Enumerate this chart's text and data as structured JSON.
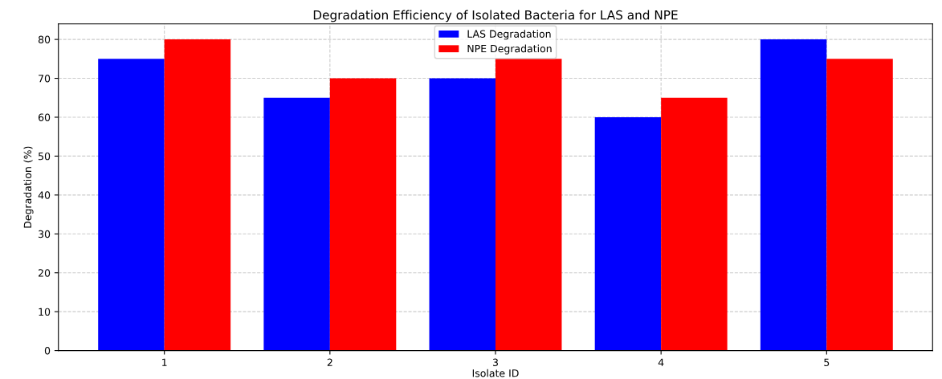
{
  "chart_data": {
    "type": "bar",
    "title": "Degradation Efficiency of Isolated Bacteria for LAS and NPE",
    "xlabel": "Isolate ID",
    "ylabel": "Degradation (%)",
    "categories": [
      "1",
      "2",
      "3",
      "4",
      "5"
    ],
    "series": [
      {
        "name": "LAS Degradation",
        "color": "#0000ff",
        "values": [
          75,
          65,
          70,
          60,
          80
        ]
      },
      {
        "name": "NPE Degradation",
        "color": "#ff0000",
        "values": [
          80,
          70,
          75,
          65,
          75
        ]
      }
    ],
    "ylim": [
      0,
      84
    ],
    "yticks": [
      0,
      10,
      20,
      30,
      40,
      50,
      60,
      70,
      80
    ],
    "grid": true,
    "legend": "top"
  }
}
